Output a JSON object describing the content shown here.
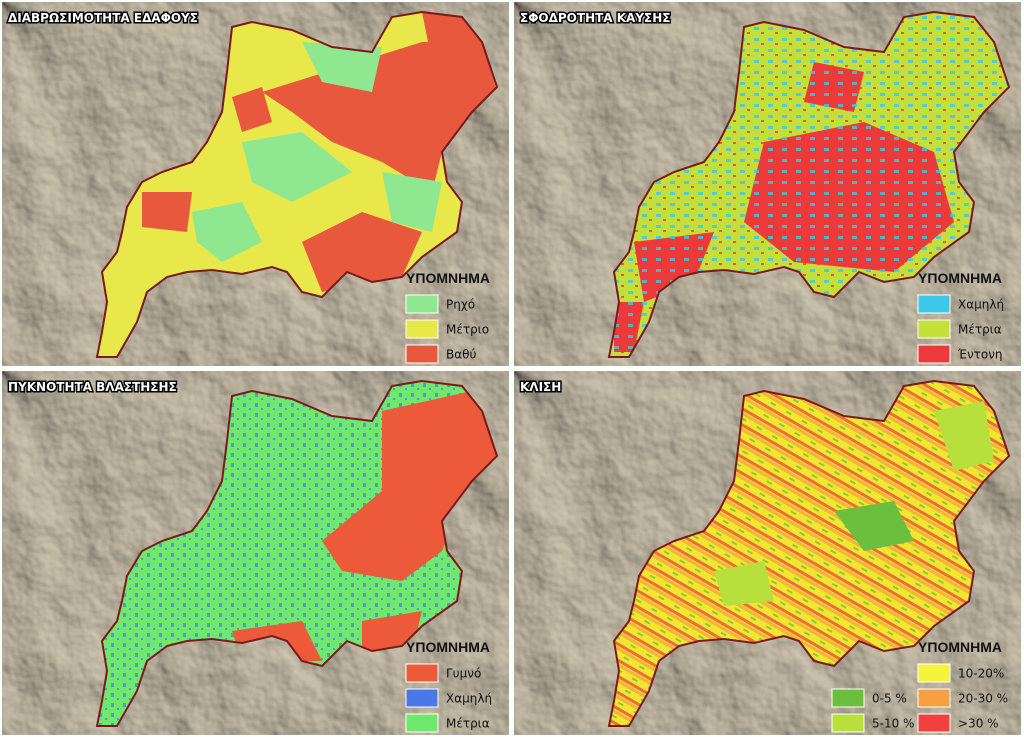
{
  "panels": [
    {
      "title": "ΔΙΑΒΡΩΣΙΜΟΤΗΤΑ ΕΔΑΦΟΥΣ",
      "legend": {
        "title": "ΥΠΟΜΝΗΜΑ",
        "items": [
          {
            "label": "Ρηχό",
            "color": "#8fe88f"
          },
          {
            "label": "Μέτριο",
            "color": "#e8e84a"
          },
          {
            "label": "Βαθύ",
            "color": "#e8583c"
          }
        ]
      }
    },
    {
      "title": "ΣΦΟΔΡΟΤΗΤΑ ΚΑΥΣΗΣ",
      "legend": {
        "title": "ΥΠΟΜΝΗΜΑ",
        "items": [
          {
            "label": "Χαμηλή",
            "color": "#3cc8e8"
          },
          {
            "label": "Μέτρια",
            "color": "#c4e03a"
          },
          {
            "label": "Έντονη",
            "color": "#ec3a3a"
          }
        ]
      }
    },
    {
      "title": "ΠΥΚΝΟΤΗΤΑ ΒΛΑΣΤΗΣΗΣ",
      "legend": {
        "title": "ΥΠΟΜΝΗΜΑ",
        "items": [
          {
            "label": "Γυμνό",
            "color": "#ec5a3a"
          },
          {
            "label": "Χαμηλή",
            "color": "#4a78e8"
          },
          {
            "label": "Μέτρια",
            "color": "#6ee86e"
          }
        ]
      }
    },
    {
      "title": "ΚΛΙΣΗ",
      "legend": {
        "title": "ΥΠΟΜΝΗΜΑ",
        "items": [
          {
            "label": "0-5 %",
            "color": "#6cbf3c"
          },
          {
            "label": "5-10 %",
            "color": "#b8e03c"
          },
          {
            "label": "10-20%",
            "color": "#f4f43c"
          },
          {
            "label": "20-30 %",
            "color": "#f8a040"
          },
          {
            "label": ">30 %",
            "color": "#f04040"
          }
        ]
      }
    }
  ]
}
